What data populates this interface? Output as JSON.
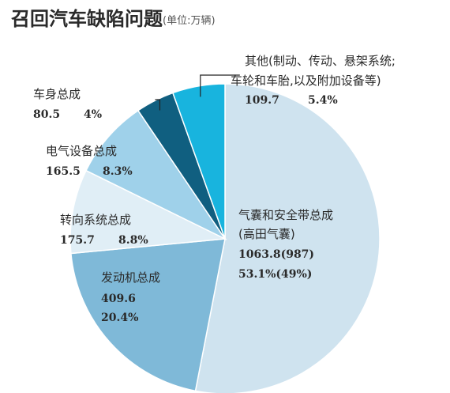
{
  "chart_data": {
    "type": "pie",
    "title": "召回汽车缺陷问题",
    "subtitle": "(单位:万辆)",
    "slices": [
      {
        "key": "airbag",
        "lines": [
          "气囊和安全带总成",
          "(高田气囊)"
        ],
        "value_text": "1063.8(987)",
        "percent_text": "53.1%(49%)",
        "value": 1063.8,
        "percent": 53.1,
        "color": "#cfe3ef"
      },
      {
        "key": "engine",
        "lines": [
          "发动机总成"
        ],
        "value_text": "409.6",
        "percent_text": "20.4%",
        "value": 409.6,
        "percent": 20.4,
        "color": "#7fb9d8"
      },
      {
        "key": "steering",
        "lines": [
          "转向系统总成"
        ],
        "value_text": "175.7",
        "percent_text": "8.8%",
        "value": 175.7,
        "percent": 8.8,
        "color": "#e0eef6"
      },
      {
        "key": "electrical",
        "lines": [
          "电气设备总成"
        ],
        "value_text": "165.5",
        "percent_text": "8.3%",
        "value": 165.5,
        "percent": 8.3,
        "color": "#9fd1ea"
      },
      {
        "key": "body",
        "lines": [
          "车身总成"
        ],
        "value_text": "80.5",
        "percent_text": "4%",
        "value": 80.5,
        "percent": 4.0,
        "color": "#105f80"
      },
      {
        "key": "other",
        "lines": [
          "其他(制动、传动、悬架系统;",
          "车轮和车胎,以及附加设备等)"
        ],
        "value_text": "109.7",
        "percent_text": "5.4%",
        "value": 109.7,
        "percent": 5.4,
        "color": "#18b4de"
      }
    ]
  }
}
